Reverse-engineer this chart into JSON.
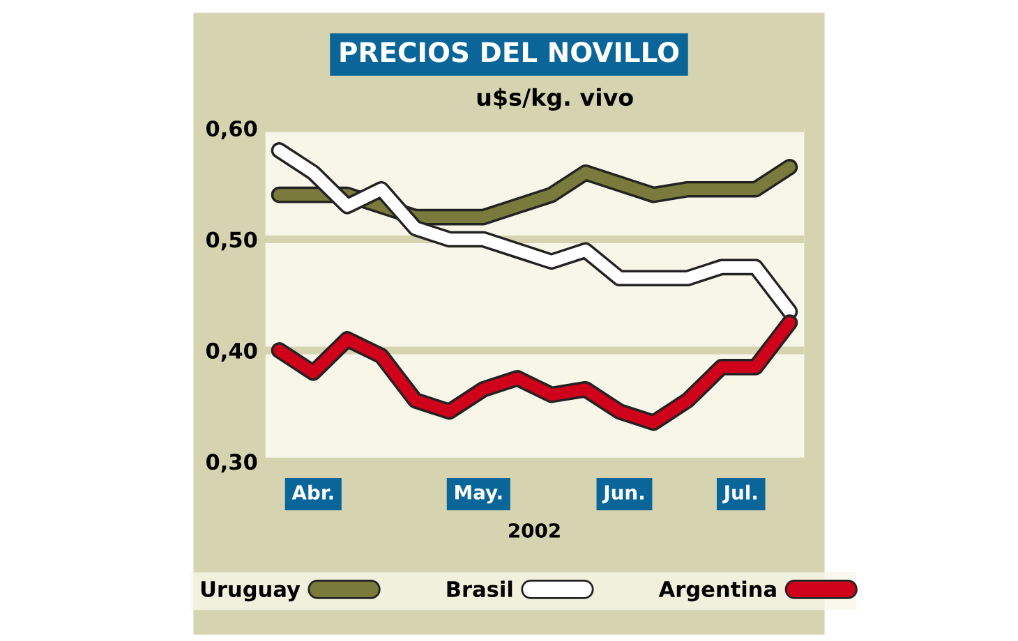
{
  "chart_data": {
    "type": "line",
    "title": "PRECIOS DEL NOVILLO",
    "subtitle": "u$s/kg. vivo",
    "xlabel": "2002",
    "x": [
      "2002-04-05",
      "2002-04-12",
      "2002-04-19",
      "2002-04-26",
      "2002-05-03",
      "2002-05-10",
      "2002-05-17",
      "2002-05-24",
      "2002-05-31",
      "2002-06-07",
      "2002-06-14",
      "2002-06-21",
      "2002-06-28",
      "2002-07-05",
      "2002-07-12",
      "2002-07-19"
    ],
    "xlim": [
      "2002-04-02",
      "2002-07-22"
    ],
    "xticks": [
      {
        "value": "2002-04-12",
        "label": "Abr."
      },
      {
        "value": "2002-05-16",
        "label": "May."
      },
      {
        "value": "2002-06-15",
        "label": "Jun."
      },
      {
        "value": "2002-07-09",
        "label": "Jul."
      }
    ],
    "ylim": [
      0.3,
      0.6
    ],
    "yticks": [
      {
        "value": 0.3,
        "label": "0,30"
      },
      {
        "value": 0.4,
        "label": "0,40"
      },
      {
        "value": 0.5,
        "label": "0,50"
      },
      {
        "value": 0.6,
        "label": "0,60"
      }
    ],
    "grid": "y",
    "legend": "bottom",
    "marker": "none",
    "line_style": "solid",
    "series": [
      {
        "name": "Uruguay",
        "color": "#7a7a3c",
        "values": [
          0.54,
          0.54,
          0.54,
          0.53,
          0.52,
          0.52,
          0.52,
          0.53,
          0.54,
          0.56,
          0.55,
          0.54,
          0.545,
          0.545,
          0.545,
          0.565
        ]
      },
      {
        "name": "Brasil",
        "color": "#ffffff",
        "values": [
          0.58,
          0.56,
          0.53,
          0.545,
          0.51,
          0.5,
          0.5,
          0.49,
          0.48,
          0.49,
          0.465,
          0.465,
          0.465,
          0.475,
          0.475,
          0.435
        ]
      },
      {
        "name": "Argentina",
        "color": "#d0021b",
        "values": [
          0.4,
          0.38,
          0.41,
          0.395,
          0.355,
          0.345,
          0.365,
          0.375,
          0.36,
          0.365,
          0.345,
          0.335,
          0.355,
          0.385,
          0.385,
          0.425
        ]
      }
    ]
  }
}
